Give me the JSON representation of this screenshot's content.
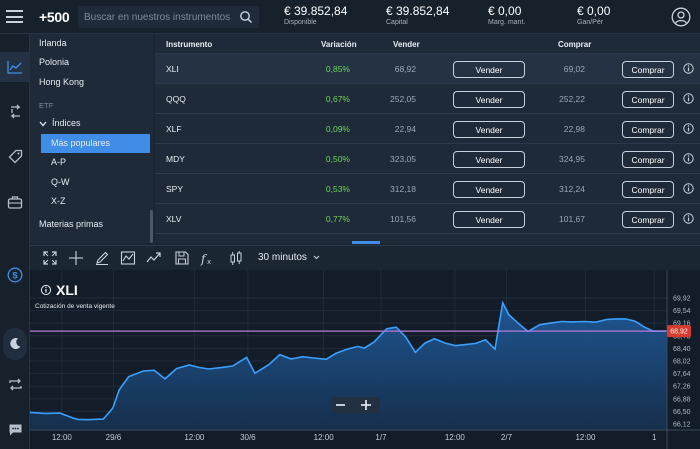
{
  "header": {
    "logo_text": "+500",
    "search_placeholder": "Buscar en nuestros instrumentos",
    "stats": [
      {
        "value": "€ 39.852,84",
        "label": "Disponible"
      },
      {
        "value": "€ 39.852,84",
        "label": "Capital"
      },
      {
        "value": "€ 0,00",
        "label": "Marg. mant."
      },
      {
        "value": "€ 0,00",
        "label": "Gan/Pér"
      }
    ]
  },
  "categories": {
    "items": [
      {
        "label": "Irlanda"
      },
      {
        "label": "Polonia"
      },
      {
        "label": "Hong Kong"
      }
    ],
    "etf_label": "ETF",
    "indices_label": "Índices",
    "sub_items": [
      {
        "label": "Más populares"
      },
      {
        "label": "A-P"
      },
      {
        "label": "Q-W"
      },
      {
        "label": "X-Z"
      }
    ],
    "materias_label": "Materias primas"
  },
  "table": {
    "headers": {
      "instrument": "Instrumento",
      "change": "Variación",
      "sell": "Vender",
      "buy": "Comprar"
    },
    "sell_button": "Vender",
    "buy_button": "Comprar",
    "rows": [
      {
        "name": "XLI",
        "change": "0,85%",
        "sell": "68,92",
        "buy": "69,02"
      },
      {
        "name": "QQQ",
        "change": "0,67%",
        "sell": "252,05",
        "buy": "252,22"
      },
      {
        "name": "XLF",
        "change": "0,09%",
        "sell": "22,94",
        "buy": "22,98"
      },
      {
        "name": "MDY",
        "change": "0,50%",
        "sell": "323,05",
        "buy": "324,95"
      },
      {
        "name": "SPY",
        "change": "0,53%",
        "sell": "312,18",
        "buy": "312,24"
      },
      {
        "name": "XLV",
        "change": "0,77%",
        "sell": "101,56",
        "buy": "101,67"
      }
    ]
  },
  "chart_toolbar": {
    "timeframe": "30 minutos"
  },
  "chart_data": {
    "type": "area",
    "title": "XLI",
    "subtitle": "Cotización de venta vigente",
    "current_price_label": "68,92",
    "current_price": 68.92,
    "y_ticks": [
      "69,92",
      "69,54",
      "69,16",
      "68,78",
      "68,40",
      "68,02",
      "67,64",
      "67,26",
      "66,88",
      "66,50",
      "66,12"
    ],
    "ylim": [
      65.94,
      70.1
    ],
    "x_ticks": [
      "12:00",
      "29/6",
      "12:00",
      "30/6",
      "12:00",
      "1/7",
      "12:00",
      "2/7",
      "12:00",
      "1"
    ],
    "x_tick_positions": [
      0.05,
      0.131,
      0.258,
      0.342,
      0.461,
      0.551,
      0.667,
      0.748,
      0.872,
      0.98
    ],
    "x": [
      0,
      0.024,
      0.047,
      0.068,
      0.075,
      0.09,
      0.115,
      0.13,
      0.14,
      0.155,
      0.178,
      0.195,
      0.212,
      0.23,
      0.25,
      0.262,
      0.28,
      0.3,
      0.318,
      0.34,
      0.353,
      0.375,
      0.392,
      0.41,
      0.428,
      0.445,
      0.465,
      0.48,
      0.498,
      0.515,
      0.525,
      0.54,
      0.56,
      0.575,
      0.59,
      0.605,
      0.62,
      0.635,
      0.652,
      0.668,
      0.685,
      0.7,
      0.715,
      0.73,
      0.742,
      0.752,
      0.768,
      0.782,
      0.8,
      0.818,
      0.835,
      0.852,
      0.87,
      0.888,
      0.905,
      0.92,
      0.935,
      0.95,
      0.965,
      0.978,
      0.988,
      1
    ],
    "values": [
      66.47,
      66.44,
      66.45,
      66.3,
      66.26,
      66.25,
      66.27,
      66.6,
      67.15,
      67.55,
      67.72,
      67.74,
      67.48,
      67.79,
      67.9,
      67.84,
      67.78,
      67.82,
      67.87,
      68.13,
      67.65,
      67.91,
      68.21,
      68.08,
      68.15,
      68.11,
      68.07,
      68.25,
      68.38,
      68.46,
      68.41,
      68.59,
      68.99,
      69.04,
      68.74,
      68.28,
      68.56,
      68.69,
      68.56,
      68.48,
      68.52,
      68.55,
      68.66,
      68.38,
      69.77,
      69.41,
      69.13,
      68.91,
      69.11,
      69.17,
      69.21,
      69.2,
      69.21,
      69.19,
      69.27,
      69.29,
      69.29,
      69.22,
      69.04,
      68.92,
      68.92,
      68.92
    ]
  }
}
